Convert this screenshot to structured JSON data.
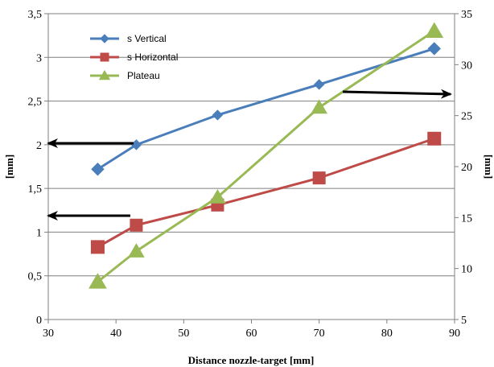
{
  "chart_data": {
    "type": "line",
    "xlabel": "Distance nozzle-target [mm]",
    "ylabel_left": "[mm]",
    "ylabel_right": "[mm]",
    "xlim": [
      30,
      90
    ],
    "ylim_left": [
      0,
      3.5
    ],
    "ylim_right": [
      5,
      35
    ],
    "x_ticks": [
      "30",
      "40",
      "50",
      "60",
      "70",
      "80",
      "90"
    ],
    "y_left_ticks": [
      "0",
      "0,5",
      "1",
      "1,5",
      "2",
      "2,5",
      "3",
      "3,5"
    ],
    "y_right_ticks": [
      "5",
      "10",
      "15",
      "20",
      "25",
      "30",
      "35"
    ],
    "grid": "horizontal",
    "legend_position": "top-left",
    "series": [
      {
        "name": "s Vertical",
        "axis": "left",
        "marker": "diamond",
        "color": "#4a7ebb",
        "x": [
          37.3,
          43,
          55,
          70,
          87
        ],
        "y": [
          1.72,
          2.0,
          2.34,
          2.69,
          3.1
        ]
      },
      {
        "name": "s Horizontal",
        "axis": "left",
        "marker": "square",
        "color": "#be4b48",
        "x": [
          37.3,
          43,
          55,
          70,
          87
        ],
        "y": [
          0.83,
          1.08,
          1.31,
          1.62,
          2.07
        ]
      },
      {
        "name": "Plateau",
        "axis": "right",
        "marker": "triangle",
        "color": "#98b954",
        "x": [
          37.3,
          43,
          55,
          70,
          87
        ],
        "y": [
          8.7,
          11.7,
          17.0,
          25.8,
          33.3
        ]
      }
    ],
    "annotations": [
      {
        "type": "arrow",
        "direction": "left",
        "points_to": "left-axis",
        "near_series": "s Vertical"
      },
      {
        "type": "arrow",
        "direction": "left",
        "points_to": "left-axis",
        "near_series": "s Horizontal"
      },
      {
        "type": "arrow",
        "direction": "right",
        "points_to": "right-axis",
        "near_series": "Plateau"
      }
    ]
  }
}
